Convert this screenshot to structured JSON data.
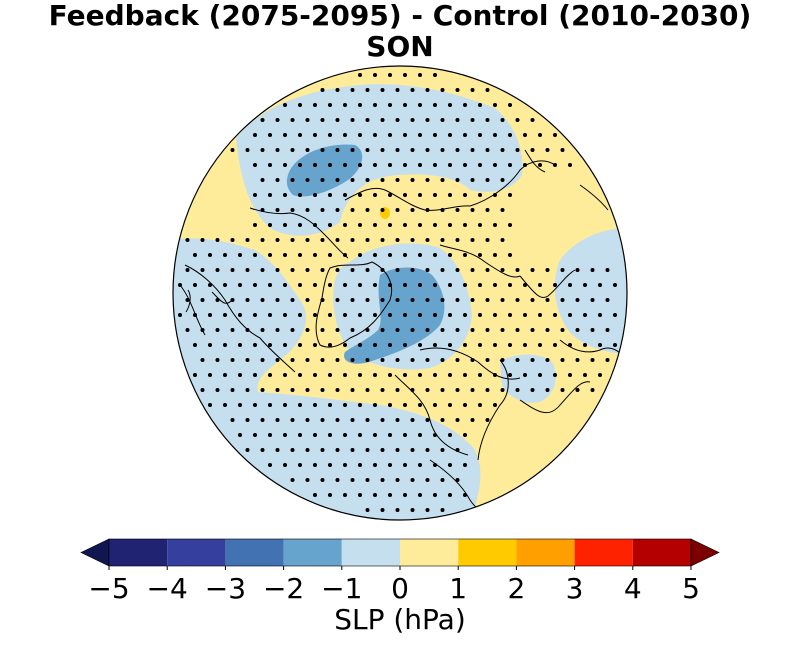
{
  "title": {
    "line1": "Feedback (2075-2095) - Control (2010-2030)",
    "line2": "SON"
  },
  "map": {
    "projection": "north-polar-stereographic",
    "variable": "SLP difference",
    "stippling": "significance dots"
  },
  "colorbar": {
    "label": "SLP (hPa)",
    "ticks": [
      "−5",
      "−4",
      "−3",
      "−2",
      "−1",
      "0",
      "1",
      "2",
      "3",
      "4",
      "5"
    ],
    "bins": [
      {
        "range": [
          -6,
          -5
        ],
        "color": "#101650"
      },
      {
        "range": [
          -5,
          -4
        ],
        "color": "#1f2372"
      },
      {
        "range": [
          -4,
          -3
        ],
        "color": "#343f9e"
      },
      {
        "range": [
          -3,
          -2
        ],
        "color": "#4372b2"
      },
      {
        "range": [
          -2,
          -1
        ],
        "color": "#66a3cd"
      },
      {
        "range": [
          -1,
          0
        ],
        "color": "#c5dfee"
      },
      {
        "range": [
          0,
          1
        ],
        "color": "#ffec9a"
      },
      {
        "range": [
          1,
          2
        ],
        "color": "#ffcb00"
      },
      {
        "range": [
          2,
          3
        ],
        "color": "#ff9f00"
      },
      {
        "range": [
          3,
          4
        ],
        "color": "#ff2200"
      },
      {
        "range": [
          4,
          5
        ],
        "color": "#b50000"
      },
      {
        "range": [
          5,
          6
        ],
        "color": "#7c0000"
      }
    ]
  }
}
